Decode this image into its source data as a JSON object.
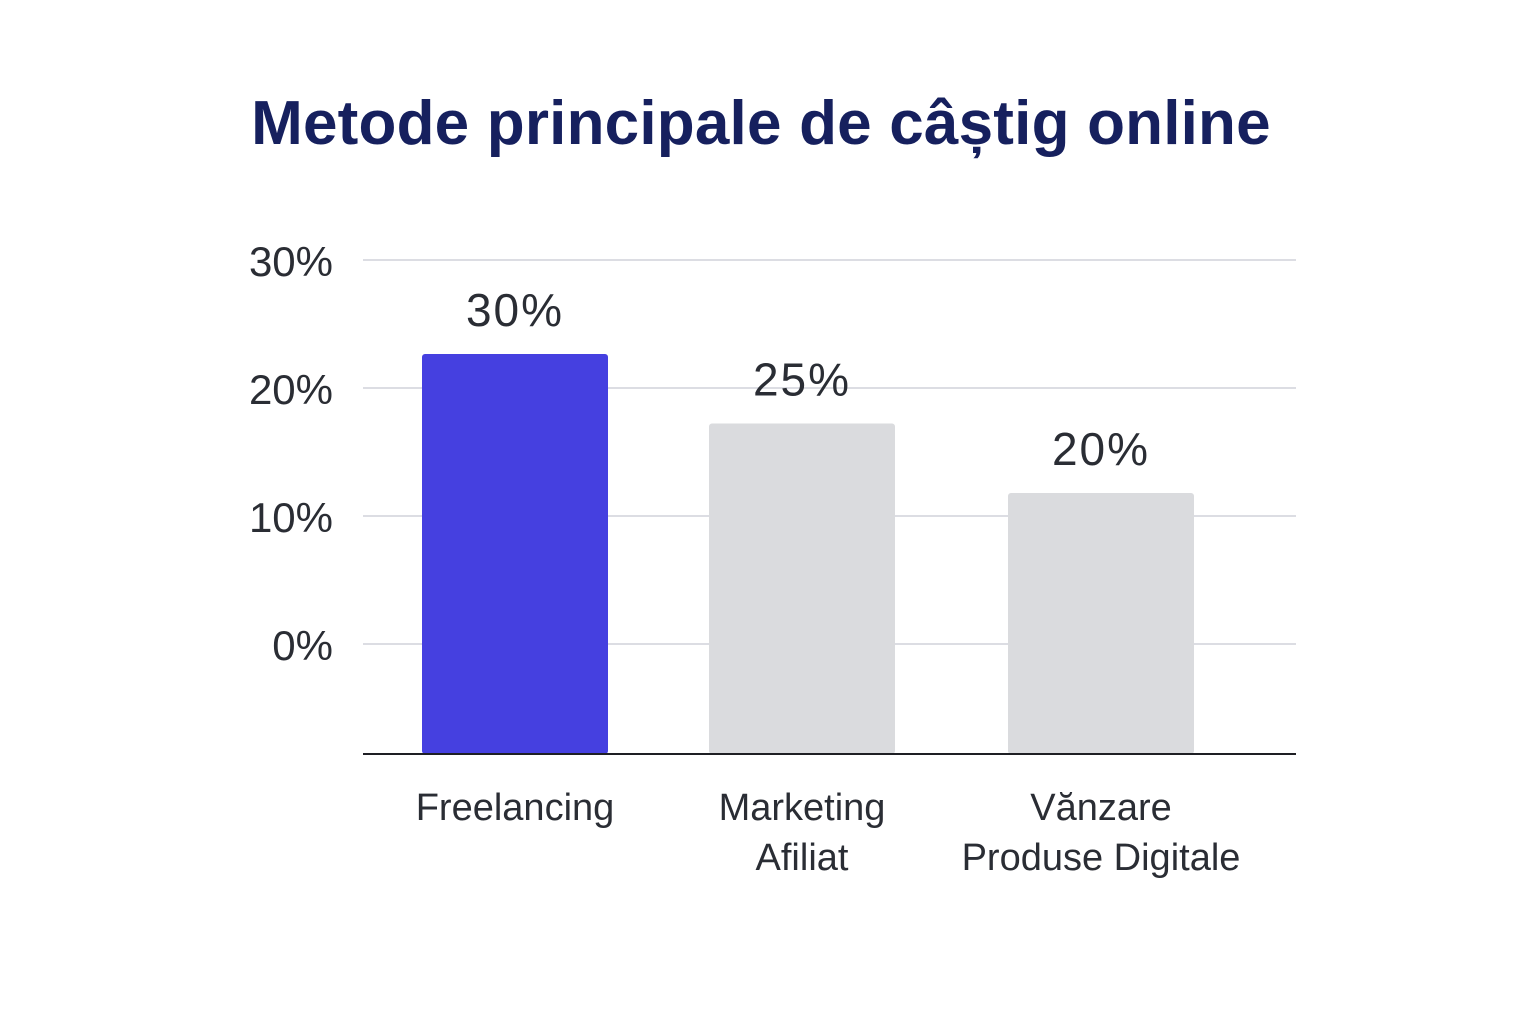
{
  "chart_data": {
    "type": "bar",
    "title": "Metode principale de câștig online",
    "categories": [
      [
        "Freelancing"
      ],
      [
        "Marketing",
        "Afiliat"
      ],
      [
        "Vănzare",
        "Produse Digitale"
      ]
    ],
    "values": [
      30,
      25,
      20
    ],
    "data_labels": [
      "30%",
      "25%",
      "20%"
    ],
    "y_tick_labels": [
      "30%",
      "20%",
      "10%",
      "0%"
    ],
    "grid": true,
    "colors": {
      "highlight": "#4540e0",
      "default": "#dadbde",
      "title": "#16205e",
      "text": "#2a2d34",
      "grid": "#dcdde3",
      "axis": "#1e1f24"
    }
  }
}
